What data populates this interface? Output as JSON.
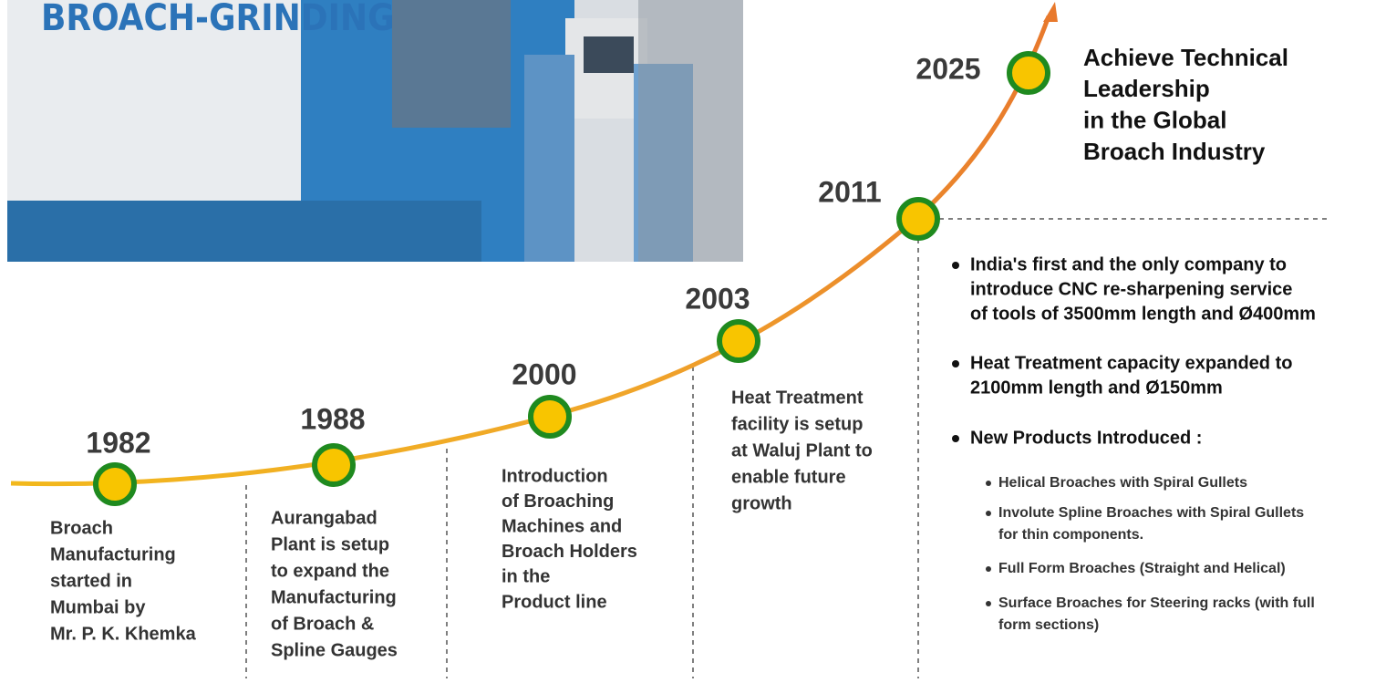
{
  "photo": {
    "sign": "BROACH-GRINDING"
  },
  "milestones": [
    {
      "year": "1982",
      "lines": [
        "Broach",
        "Manufacturing",
        "started in",
        "Mumbai by",
        "Mr. P. K. Khemka"
      ]
    },
    {
      "year": "1988",
      "lines": [
        "Aurangabad",
        "Plant is setup",
        "to expand the",
        "Manufacturing",
        "of Broach &",
        "Spline Gauges"
      ]
    },
    {
      "year": "2000",
      "lines": [
        "Introduction",
        "of Broaching",
        "Machines and",
        "Broach Holders",
        "in the",
        "Product line"
      ]
    },
    {
      "year": "2003",
      "lines": [
        "Heat Treatment",
        "facility is setup",
        "at Waluj Plant to",
        "enable future",
        "growth"
      ]
    },
    {
      "year": "2011",
      "lines": []
    }
  ],
  "goal": {
    "year": "2025",
    "lines": [
      "Achieve Technical",
      "Leadership",
      "in the Global",
      "Broach Industry"
    ]
  },
  "highlights": {
    "bullets": [
      {
        "lines": [
          "India's first and the only company to",
          "introduce CNC re-sharpening service",
          "of tools of 3500mm length and Ø400mm"
        ]
      },
      {
        "lines": [
          "Heat Treatment capacity expanded to",
          "2100mm length and Ø150mm"
        ]
      },
      {
        "lines": [
          "New Products Introduced :"
        ]
      }
    ],
    "products": [
      {
        "lines": [
          "Helical Broaches with Spiral Gullets"
        ]
      },
      {
        "lines": [
          "Involute Spline Broaches with Spiral Gullets",
          "for thin components."
        ]
      },
      {
        "lines": [
          "Full Form Broaches (Straight and Helical)"
        ]
      },
      {
        "lines": [
          "Surface Broaches for Steering racks (with full",
          "form sections)"
        ]
      }
    ]
  }
}
